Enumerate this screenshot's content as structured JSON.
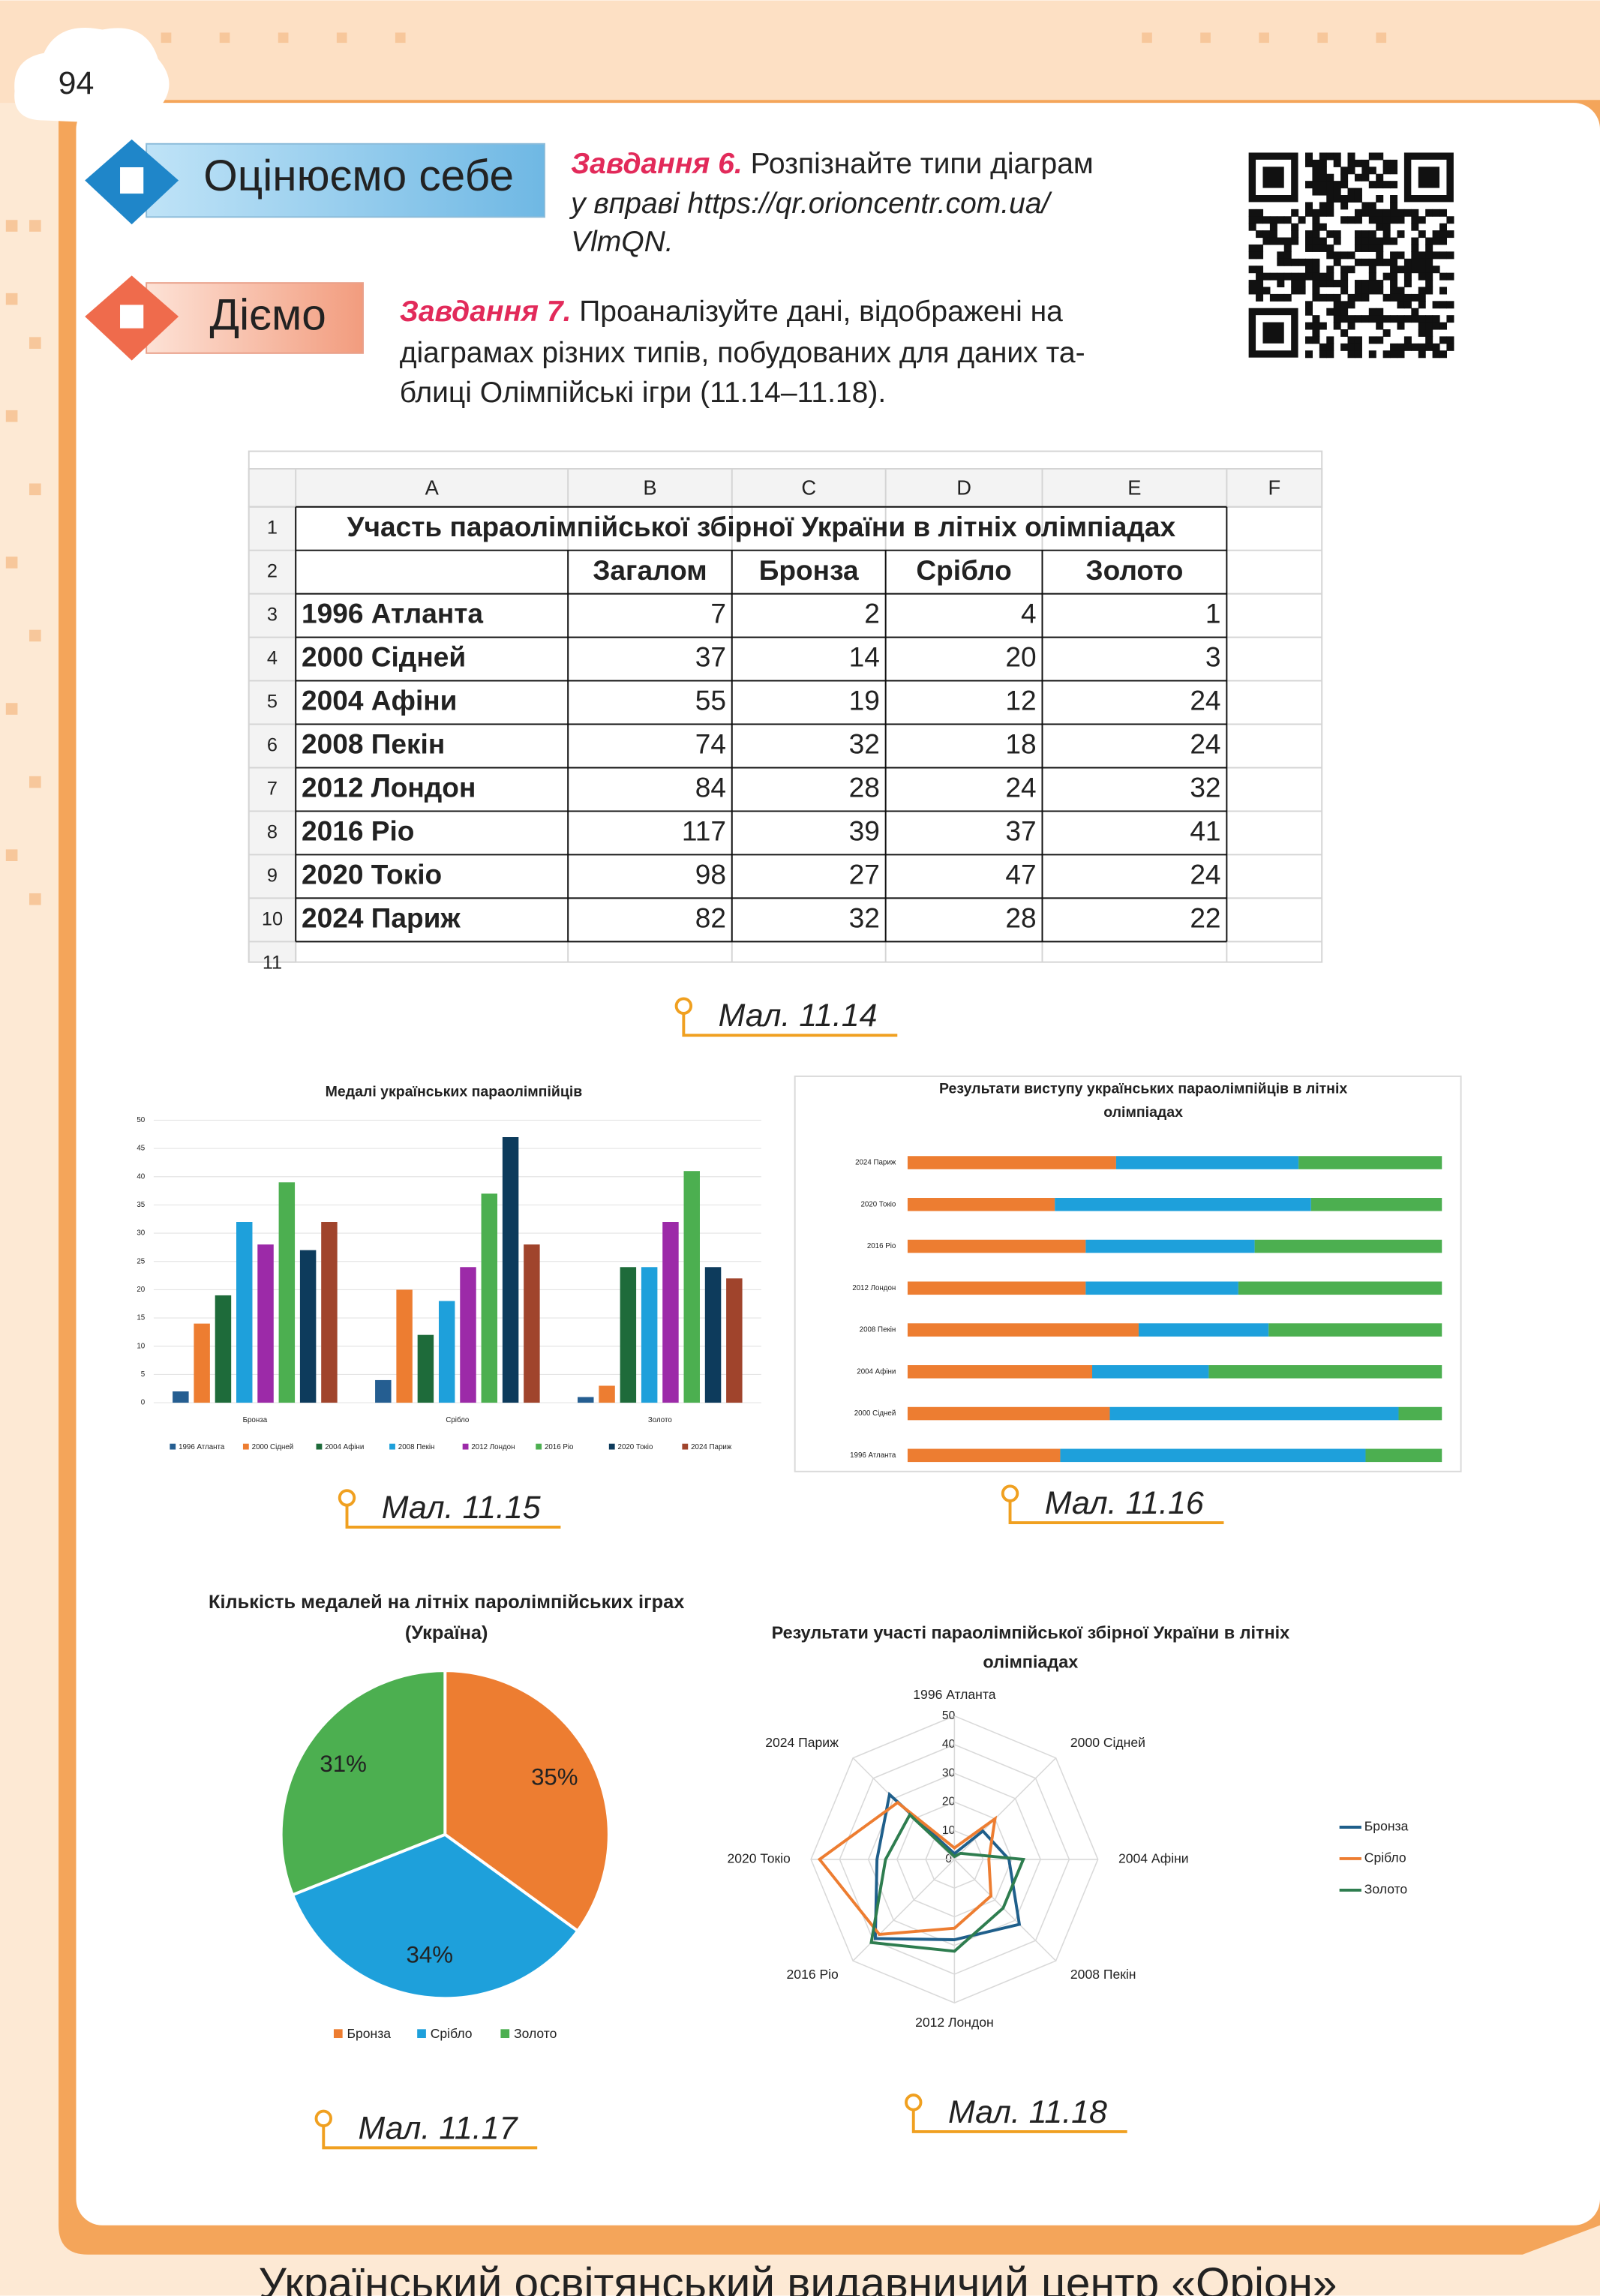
{
  "page_number": "94",
  "sections": [
    {
      "label": "Оцінюємо себе"
    },
    {
      "label": "Діємо"
    }
  ],
  "tasks": [
    {
      "label": "Завдання 6.",
      "lines": [
        "Розпізнайте типи діаграм",
        "у вправі https://qr.orioncentr.com.ua/",
        "VlmQN."
      ]
    },
    {
      "label": "Завдання 7.",
      "lines": [
        "Проаналізуйте дані, відображені на",
        "діаграмах різних типів, побудованих для даних та-",
        "блиці Олімпійські ігри (11.14–11.18)."
      ]
    }
  ],
  "table": {
    "column_headers": [
      "A",
      "B",
      "C",
      "D",
      "E",
      "F"
    ],
    "row_numbers": [
      1,
      2,
      3,
      4,
      5,
      6,
      7,
      8,
      9,
      10,
      11
    ],
    "title": "Участь параолімпійської збірної України в літніх олімпіадах",
    "header": [
      "Загалом",
      "Бронза",
      "Срібло",
      "Золото"
    ],
    "rows": [
      [
        "1996 Атланта",
        7,
        2,
        4,
        1
      ],
      [
        "2000 Сідней",
        37,
        14,
        20,
        3
      ],
      [
        "2004 Афіни",
        55,
        19,
        12,
        24
      ],
      [
        "2008 Пекін",
        74,
        32,
        18,
        24
      ],
      [
        "2012 Лондон",
        84,
        28,
        24,
        32
      ],
      [
        "2016 Ріо",
        117,
        39,
        37,
        41
      ],
      [
        "2020 Токіо",
        98,
        27,
        47,
        24
      ],
      [
        "2024 Париж",
        82,
        32,
        28,
        22
      ]
    ]
  },
  "captions": [
    "Мал. 11.14",
    "Мал. 11.15",
    "Мал. 11.16",
    "Мал. 11.17",
    "Мал. 11.18"
  ],
  "footer": "Український освітянський видавничий центр «Оріон»",
  "chart_data": [
    {
      "type": "bar",
      "title": [
        "Медалі українських параолімпійців"
      ],
      "categories": [
        "Бронза",
        "Срібло",
        "Золото"
      ],
      "series": [
        {
          "name": "1996 Атланта",
          "color": "#255e91",
          "values": [
            2,
            4,
            1
          ]
        },
        {
          "name": "2000 Сідней",
          "color": "#ed7d31",
          "values": [
            14,
            20,
            3
          ]
        },
        {
          "name": "2004 Афіни",
          "color": "#1e6b3a",
          "values": [
            19,
            12,
            24
          ]
        },
        {
          "name": "2008 Пекін",
          "color": "#1ea0db",
          "values": [
            32,
            18,
            24
          ]
        },
        {
          "name": "2012 Лондон",
          "color": "#9c2aa8",
          "values": [
            28,
            24,
            32
          ]
        },
        {
          "name": "2016 Ріо",
          "color": "#4caf50",
          "values": [
            39,
            37,
            41
          ]
        },
        {
          "name": "2020 Токіо",
          "color": "#0d3b5c",
          "values": [
            27,
            47,
            24
          ]
        },
        {
          "name": "2024 Париж",
          "color": "#a0442c",
          "values": [
            32,
            28,
            22
          ]
        }
      ],
      "ylim": [
        0,
        50
      ],
      "yticks": [
        0,
        5,
        10,
        15,
        20,
        25,
        30,
        35,
        40,
        45,
        50
      ],
      "grid": true
    },
    {
      "type": "stacked_percent_bar",
      "title": [
        "Результати виступу українських параолімпійців в літніх",
        "олімпіадах"
      ],
      "categories": [
        "1996 Атланта",
        "2000 Сідней",
        "2004 Афіни",
        "2008 Пекін",
        "2012 Лондон",
        "2016 Ріо",
        "2020 Токіо",
        "2024 Париж"
      ],
      "series": [
        {
          "name": "Бронза",
          "color": "#ed7d31",
          "values": [
            2,
            14,
            19,
            32,
            28,
            39,
            27,
            32
          ]
        },
        {
          "name": "Срібло",
          "color": "#1ea0db",
          "values": [
            4,
            20,
            12,
            18,
            24,
            37,
            47,
            28
          ]
        },
        {
          "name": "Золото",
          "color": "#4caf50",
          "values": [
            1,
            3,
            24,
            24,
            32,
            41,
            24,
            22
          ]
        }
      ]
    },
    {
      "type": "pie",
      "title": [
        "Кількість медалей на літніх паролімпійських іграх",
        "(Україна)"
      ],
      "categories": [
        "Бронза",
        "Срібло",
        "Золото"
      ],
      "values": [
        35,
        34,
        31
      ],
      "value_labels": [
        "35%",
        "34%",
        "31%"
      ],
      "colors": [
        "#ed7d31",
        "#1ea0db",
        "#4caf50"
      ]
    },
    {
      "type": "radar",
      "title": [
        "Результати участі параолімпійської збірної України в літніх",
        "олімпіадах"
      ],
      "categories": [
        "1996 Атланта",
        "2000 Сідней",
        "2004 Афіни",
        "2008 Пекін",
        "2012 Лондон",
        "2016 Ріо",
        "2020 Токіо",
        "2024 Париж"
      ],
      "series": [
        {
          "name": "Бронза",
          "color": "#1f5f8b",
          "values": [
            2,
            14,
            19,
            32,
            28,
            39,
            27,
            32
          ]
        },
        {
          "name": "Срібло",
          "color": "#ed7d31",
          "values": [
            4,
            20,
            12,
            18,
            24,
            37,
            47,
            28
          ]
        },
        {
          "name": "Золото",
          "color": "#2e7d4f",
          "values": [
            1,
            3,
            24,
            24,
            32,
            41,
            24,
            22
          ]
        }
      ],
      "rlim": [
        0,
        50
      ],
      "rticks": [
        0,
        10,
        20,
        30,
        40,
        50
      ]
    }
  ]
}
